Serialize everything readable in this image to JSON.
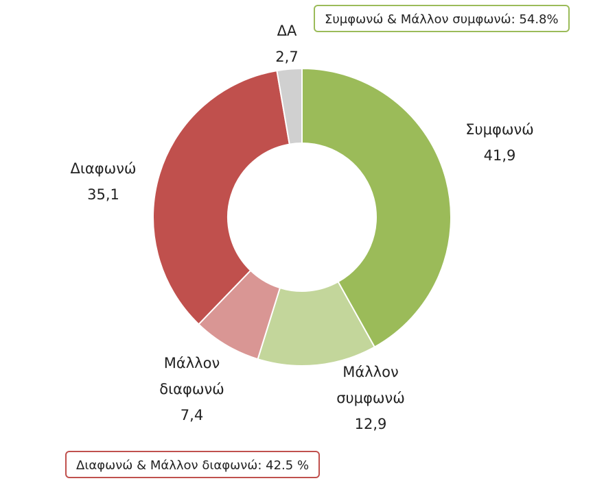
{
  "chart_data": {
    "type": "pie",
    "variant": "donut",
    "slices": [
      {
        "label": "Συμφωνώ",
        "value": 41.9,
        "value_label": "41,9",
        "color": "#9bbb59"
      },
      {
        "label": "Μάλλον συμφωνώ",
        "value": 12.9,
        "value_label": "12,9",
        "color": "#c3d69b"
      },
      {
        "label": "Μάλλον διαφωνώ",
        "value": 7.4,
        "value_label": "7,4",
        "color": "#d99694"
      },
      {
        "label": "Διαφωνώ",
        "value": 35.1,
        "value_label": "35,1",
        "color": "#c0504d"
      },
      {
        "label": "ΔΑ",
        "value": 2.7,
        "value_label": "2,7",
        "color": "#d0d0d0"
      }
    ],
    "legend": "none"
  },
  "summaries": {
    "agree": {
      "text": "Συμφωνώ & Μάλλον συμφωνώ: 54.8%",
      "color": "#9bbb59"
    },
    "disagree": {
      "text": "Διαφωνώ & Μάλλον διαφωνώ: 42.5 %",
      "color": "#c0504d"
    }
  }
}
